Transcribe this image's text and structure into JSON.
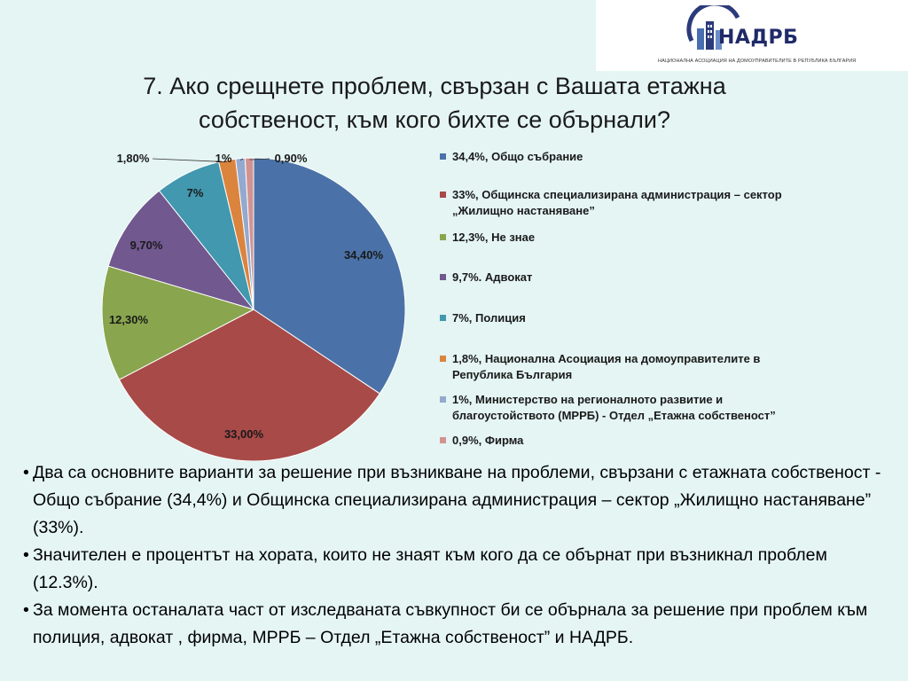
{
  "logo": {
    "name": "НАДРБ",
    "subtitle": "НАЦИОНАЛНА АСОЦИАЦИЯ НА ДОМОУПРАВИТЕЛИТЕ В РЕПУБЛИКА БЪЛГАРИЯ"
  },
  "title_line1": "7. Ако срещнете проблем, свързан с Вашата етажна",
  "title_line2": "собственост, към кого бихте се обърнали?",
  "chart_data": {
    "type": "pie",
    "title": "",
    "slices": [
      {
        "label": "34,4%, Общо събрание",
        "value": 34.4,
        "data_label": "34,40%",
        "color": "#4a72a8"
      },
      {
        "label": "33%, Общинска специализирана администрация – сектор „Жилищно настаняване”",
        "value": 33.0,
        "data_label": "33,00%",
        "color": "#a84a48"
      },
      {
        "label": "12,3%, Не знае",
        "value": 12.3,
        "data_label": "12,30%",
        "color": "#89a54e"
      },
      {
        "label": "9,7%. Адвокат",
        "value": 9.7,
        "data_label": "9,70%",
        "color": "#71588f"
      },
      {
        "label": "7%, Полиция",
        "value": 7.0,
        "data_label": "7%",
        "color": "#4198af"
      },
      {
        "label": "1,8%, Национална Асоциация на домоуправителите в Република България",
        "value": 1.8,
        "data_label": "1,80%",
        "color": "#db843d"
      },
      {
        "label": "1%, Министерство на регионалното развитие и благоустойството (МРРБ) - Отдел „Етажна собственост”",
        "value": 1.0,
        "data_label": "1%",
        "color": "#93a9cf"
      },
      {
        "label": "0,9%, Фирма",
        "value": 0.9,
        "data_label": "0,90%",
        "color": "#d19392"
      }
    ],
    "legend_position": "right"
  },
  "bullets": [
    {
      "mark": "•",
      "text": "Два са основните варианти за решение при възникване на проблеми, свързани с етажната собственост -  Общо събрание (34,4%) и Общинска специализирана администрация – сектор „Жилищно настаняване” (33%)."
    },
    {
      "mark": "•",
      "text": " Значителен е процентът на хората, които не знаят към кого да се обърнат при възникнал проблем (12.3%)."
    },
    {
      "mark": "•",
      "text": "За момента останалата част от изследваната съвкупност би се обърнала за решение при проблем към полиция, адвокат , фирма, МРРБ – Отдел „Етажна собственост” и НАДРБ."
    }
  ]
}
